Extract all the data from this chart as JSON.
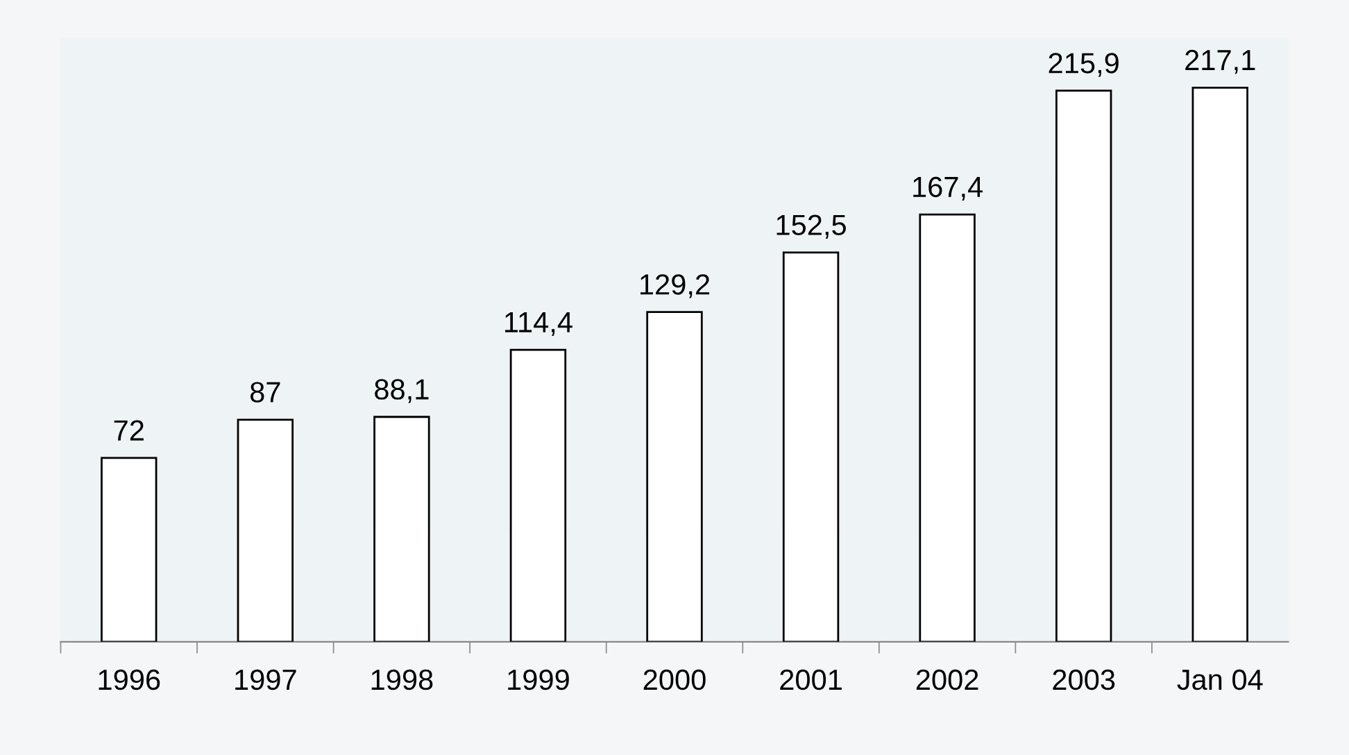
{
  "chart_data": {
    "type": "bar",
    "categories": [
      "1996",
      "1997",
      "1998",
      "1999",
      "2000",
      "2001",
      "2002",
      "2003",
      "Jan 04"
    ],
    "values": [
      72,
      87,
      88.1,
      114.4,
      129.2,
      152.5,
      167.4,
      215.9,
      217.1
    ],
    "value_labels": [
      "72",
      "87",
      "88,1",
      "114,4",
      "129,2",
      "152,5",
      "167,4",
      "215,9",
      "217,1"
    ],
    "color": "#ffffff"
  }
}
